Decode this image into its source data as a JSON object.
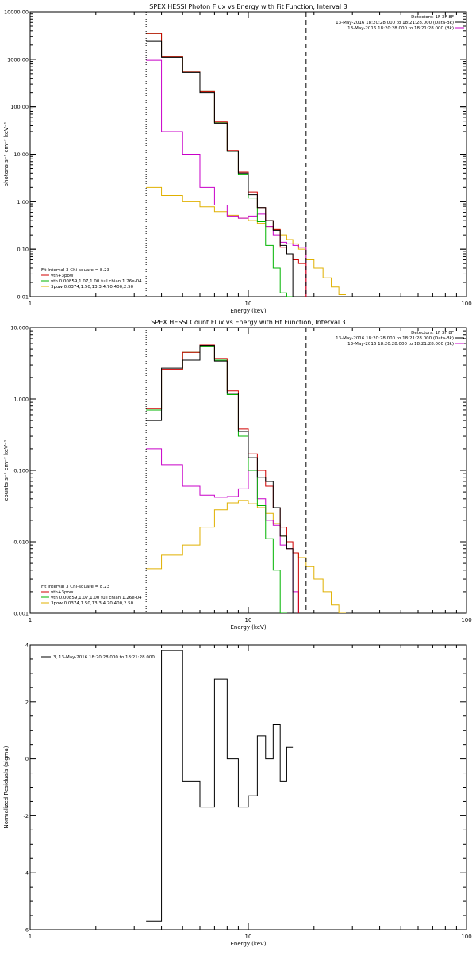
{
  "chart_data": [
    {
      "type": "line",
      "title": "SPEX HESSI Photon Flux vs Energy with Fit Function, Interval 3",
      "xlabel": "Energy (keV)",
      "ylabel": "photons s⁻¹ cm⁻² keV⁻¹",
      "xscale": "log",
      "yscale": "log",
      "xlim": [
        1,
        100
      ],
      "ylim": [
        0.01,
        10000
      ],
      "x_ticks": [
        {
          "v": 1,
          "label": "1"
        },
        {
          "v": 10,
          "label": "10"
        },
        {
          "v": 100,
          "label": "100"
        }
      ],
      "y_ticks": [
        {
          "v": 0.01,
          "label": "0.01"
        },
        {
          "v": 0.1,
          "label": "0.10"
        },
        {
          "v": 1,
          "label": "1.00"
        },
        {
          "v": 10,
          "label": "10.00"
        },
        {
          "v": 100,
          "label": "100.00"
        },
        {
          "v": 1000,
          "label": "1000.00"
        },
        {
          "v": 10000,
          "label": "10000.00"
        }
      ],
      "vlines": [
        {
          "x": 3.4,
          "color": "#000000",
          "dash": "1,2"
        },
        {
          "x": 18.4,
          "color": "#000000",
          "dash": "6,4"
        }
      ],
      "info": [
        "Detectors: 1F 3F 8F",
        "13-May-2016 18:20:28.000 to 18:21:28.000 (Data-Bk)",
        "13-May-2016 18:20:28.000 to 18:21:28.000 (Bk)"
      ],
      "fit_lines": [
        "Fit Interval 3   Chi-square = 8.23",
        "vth+3pow",
        "vth 0.00859,1.07,1.00  full chian 1.26e-04",
        "3pow 0.0374,1.50,13.3,4.70,400,2.50"
      ],
      "edges": [
        3.4,
        4.0,
        5.0,
        6.0,
        7.0,
        8.0,
        9.0,
        10.0,
        11.0,
        12.0,
        13.0,
        14.0,
        15.0,
        16.0,
        17.0,
        18.4,
        20.0,
        22.0,
        24.0,
        26.0,
        28.0
      ],
      "series": [
        {
          "name": "Data-Bk",
          "color": "#000000",
          "values": [
            2400,
            1100,
            530,
            200,
            45,
            11.5,
            4,
            1.4,
            0.75,
            0.4,
            0.25,
            0.12,
            0.08,
            null,
            null,
            null,
            null,
            null,
            null,
            null
          ]
        },
        {
          "name": "vth+3pow",
          "color": "#d00000",
          "values": [
            3500,
            1150,
            540,
            210,
            48,
            12,
            4.2,
            1.6,
            0.75,
            0.4,
            0.26,
            0.11,
            0.08,
            0.06,
            0.05,
            null,
            null,
            null,
            null,
            null
          ]
        },
        {
          "name": "vth",
          "color": "#00b400",
          "values": [
            3500,
            1150,
            540,
            210,
            47,
            11.5,
            3.8,
            1.2,
            0.38,
            0.12,
            0.04,
            0.012,
            0.01,
            null,
            null,
            null,
            null,
            null,
            null,
            null
          ]
        },
        {
          "name": "Bk",
          "color": "#c800c8",
          "values": [
            950,
            30,
            10,
            2.0,
            0.85,
            0.5,
            0.45,
            0.5,
            0.55,
            0.3,
            0.2,
            0.14,
            0.13,
            0.12,
            0.11,
            null,
            null,
            null,
            null,
            null
          ]
        },
        {
          "name": "3pow",
          "color": "#e0b000",
          "values": [
            2.0,
            1.35,
            1.0,
            0.78,
            0.62,
            0.52,
            0.45,
            0.4,
            0.35,
            0.3,
            0.26,
            0.2,
            0.16,
            0.13,
            0.1,
            0.06,
            0.04,
            0.025,
            0.016,
            0.011
          ]
        }
      ]
    },
    {
      "type": "line",
      "title": "SPEX HESSI Count Flux vs Energy with Fit Function, Interval 3",
      "xlabel": "Energy (keV)",
      "ylabel": "counts s⁻¹ cm⁻² keV⁻¹",
      "xscale": "log",
      "yscale": "log",
      "xlim": [
        1,
        100
      ],
      "ylim": [
        0.001,
        10
      ],
      "x_ticks": [
        {
          "v": 1,
          "label": "1"
        },
        {
          "v": 10,
          "label": "10"
        },
        {
          "v": 100,
          "label": "100"
        }
      ],
      "y_ticks": [
        {
          "v": 0.001,
          "label": "0.001"
        },
        {
          "v": 0.01,
          "label": "0.010"
        },
        {
          "v": 0.1,
          "label": "0.100"
        },
        {
          "v": 1,
          "label": "1.000"
        },
        {
          "v": 10,
          "label": "10.000"
        }
      ],
      "vlines": [
        {
          "x": 3.4,
          "color": "#000000",
          "dash": "1,2"
        },
        {
          "x": 18.4,
          "color": "#000000",
          "dash": "6,4"
        }
      ],
      "info": [
        "Detectors: 1F 3F 8F",
        "13-May-2016 18:20:28.000 to 18:21:28.000 (Data-Bk)",
        "13-May-2016 18:20:28.000 to 18:21:28.000 (Bk)"
      ],
      "fit_lines": [
        "Fit Interval 3   Chi-square = 8.23",
        "vth+3pow",
        "vth 0.00859,1.07,1.00  full chian 1.26e-04",
        "3pow 0.0374,1.50,13.3,4.70,400,2.50"
      ],
      "edges": [
        3.4,
        4.0,
        5.0,
        6.0,
        7.0,
        8.0,
        9.0,
        10.0,
        11.0,
        12.0,
        13.0,
        14.0,
        15.0,
        16.0,
        17.0,
        18.4,
        20.0,
        22.0,
        24.0,
        26.0,
        28.0
      ],
      "series": [
        {
          "name": "Data-Bk",
          "color": "#000000",
          "values": [
            0.5,
            2.7,
            3.5,
            5.6,
            3.4,
            1.2,
            0.35,
            0.15,
            0.08,
            0.07,
            0.03,
            0.012,
            0.008,
            null,
            null,
            null,
            null,
            null,
            null,
            null
          ]
        },
        {
          "name": "vth+3pow",
          "color": "#d00000",
          "values": [
            0.73,
            2.6,
            4.5,
            5.7,
            3.7,
            1.3,
            0.38,
            0.17,
            0.1,
            0.06,
            0.03,
            0.016,
            0.01,
            0.007,
            null,
            null,
            null,
            null,
            null,
            null
          ]
        },
        {
          "name": "vth",
          "color": "#00b400",
          "values": [
            0.7,
            2.55,
            4.5,
            5.5,
            3.5,
            1.15,
            0.3,
            0.1,
            0.032,
            0.011,
            0.004,
            0.001,
            null,
            null,
            null,
            null,
            null,
            null,
            null,
            null
          ]
        },
        {
          "name": "Bk",
          "color": "#c800c8",
          "values": [
            0.2,
            0.12,
            0.06,
            0.045,
            0.042,
            0.043,
            0.055,
            0.1,
            0.04,
            0.02,
            0.017,
            0.009,
            0.008,
            0.002,
            null,
            null,
            null,
            null,
            null,
            null
          ]
        },
        {
          "name": "3pow",
          "color": "#e0b000",
          "values": [
            0.0042,
            0.0065,
            0.009,
            0.016,
            0.028,
            0.035,
            0.038,
            0.034,
            0.03,
            0.025,
            0.018,
            0.012,
            0.008,
            0.007,
            0.006,
            0.0045,
            0.003,
            0.002,
            0.0013,
            0.001
          ]
        }
      ]
    },
    {
      "type": "line",
      "title": "",
      "xlabel": "Energy (keV)",
      "ylabel": "Normalized Residuals (sigma)",
      "xscale": "log",
      "yscale": "linear",
      "xlim": [
        1,
        100
      ],
      "ylim": [
        -6,
        4
      ],
      "x_ticks": [
        {
          "v": 1,
          "label": "1"
        },
        {
          "v": 10,
          "label": "10"
        },
        {
          "v": 100,
          "label": "100"
        }
      ],
      "y_ticks": [
        {
          "v": -6,
          "label": "-6"
        },
        {
          "v": -4,
          "label": "-4"
        },
        {
          "v": -2,
          "label": "-2"
        },
        {
          "v": 0,
          "label": "0"
        },
        {
          "v": 2,
          "label": "2"
        },
        {
          "v": 4,
          "label": "4"
        }
      ],
      "legend": "3, 13-May-2016 18:20:28.000 to 18:21:28.000",
      "edges": [
        3.4,
        4.0,
        5.0,
        6.0,
        7.0,
        8.0,
        9.0,
        10.0,
        11.0,
        12.0,
        13.0,
        14.0,
        15.0,
        16.0,
        17.0,
        18.4
      ],
      "series": [
        {
          "name": "residuals",
          "color": "#000000",
          "values": [
            -5.7,
            3.8,
            -0.8,
            -1.7,
            2.8,
            0.0,
            -1.7,
            -1.3,
            0.8,
            0.0,
            1.2,
            -0.8,
            0.4,
            null,
            null
          ]
        }
      ]
    }
  ]
}
